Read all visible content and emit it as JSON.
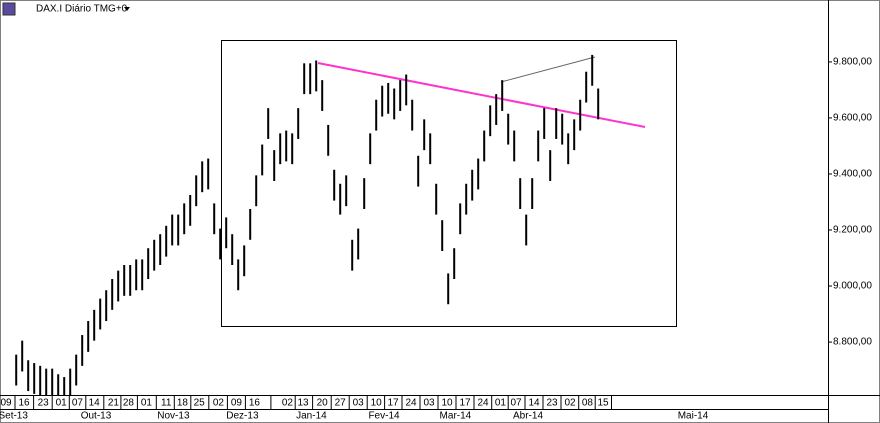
{
  "chart_data": {
    "type": "ohlc",
    "title": "DAX.I Diário TMG+0",
    "color": "#000000",
    "xlim": [
      -2.7,
      135.3
    ],
    "ylim": [
      8611,
      10021
    ],
    "yticks": [
      {
        "value": 8800,
        "label": "8.800,00"
      },
      {
        "value": 9000,
        "label": "9.000,00"
      },
      {
        "value": 9200,
        "label": "9.200,00"
      },
      {
        "value": 9400,
        "label": "9.400,00"
      },
      {
        "value": 9600,
        "label": "9.600,00"
      },
      {
        "value": 9800,
        "label": "9.800,00"
      }
    ],
    "xticks": [
      {
        "value": -1.7,
        "label": "09"
      },
      {
        "value": 1.3,
        "label": "16"
      },
      {
        "value": 4.5,
        "label": "23"
      },
      {
        "value": 7.5,
        "label": "01"
      },
      {
        "value": 10.2,
        "label": "07"
      },
      {
        "value": 13,
        "label": "14"
      },
      {
        "value": 16.2,
        "label": "21"
      },
      {
        "value": 18.7,
        "label": "28"
      },
      {
        "value": 21.7,
        "label": "01"
      },
      {
        "value": 25,
        "label": "11"
      },
      {
        "value": 27.7,
        "label": "18"
      },
      {
        "value": 30.5,
        "label": "25"
      },
      {
        "value": 33.7,
        "label": "02"
      },
      {
        "value": 36.7,
        "label": "09"
      },
      {
        "value": 39.7,
        "label": "16"
      },
      {
        "value": 45.2,
        "label": "02"
      },
      {
        "value": 47.8,
        "label": "13"
      },
      {
        "value": 51,
        "label": "20"
      },
      {
        "value": 54,
        "label": "27"
      },
      {
        "value": 57,
        "label": "03"
      },
      {
        "value": 60,
        "label": "10"
      },
      {
        "value": 62.8,
        "label": "17"
      },
      {
        "value": 65.8,
        "label": "24"
      },
      {
        "value": 68.8,
        "label": "03"
      },
      {
        "value": 71.8,
        "label": "10"
      },
      {
        "value": 74.8,
        "label": "17"
      },
      {
        "value": 77.8,
        "label": "24"
      },
      {
        "value": 80.7,
        "label": "01"
      },
      {
        "value": 83.3,
        "label": "07"
      },
      {
        "value": 86.3,
        "label": "14"
      },
      {
        "value": 89.3,
        "label": "23"
      },
      {
        "value": 92.3,
        "label": "02"
      },
      {
        "value": 95.2,
        "label": "08"
      },
      {
        "value": 97.8,
        "label": "15"
      }
    ],
    "month_ticks": [
      {
        "value": -0.5,
        "label": "Set-13"
      },
      {
        "value": 13.3,
        "label": "Out-13"
      },
      {
        "value": 26.2,
        "label": "Nov-13"
      },
      {
        "value": 37.7,
        "label": "Dez-13"
      },
      {
        "value": 49.2,
        "label": "Jan-14"
      },
      {
        "value": 61.3,
        "label": "Fev-14"
      },
      {
        "value": 73.2,
        "label": "Mar-14"
      },
      {
        "value": 85.3,
        "label": "Abr-14"
      },
      {
        "value": 112.8,
        "label": "Mai-14"
      }
    ],
    "high": [
      8755,
      8805,
      8735,
      8725,
      8715,
      8705,
      8705,
      8685,
      8675,
      8705,
      8755,
      8825,
      8875,
      8915,
      8955,
      8985,
      9025,
      9055,
      9075,
      9075,
      9095,
      9095,
      9135,
      9165,
      9185,
      9215,
      9255,
      9255,
      9295,
      9325,
      9395,
      9445,
      9455,
      9295,
      9205,
      9245,
      9185,
      9095,
      9145,
      9275,
      9395,
      9505,
      9635,
      9485,
      9545,
      9555,
      9545,
      9635,
      9795,
      9795,
      9805,
      9735,
      9575,
      9415,
      9365,
      9395,
      9165,
      9205,
      9385,
      9545,
      9665,
      9715,
      9725,
      9705,
      9735,
      9755,
      9665,
      9465,
      9595,
      9545,
      9365,
      9235,
      9045,
      9135,
      9295,
      9365,
      9415,
      9455,
      9555,
      9645,
      9685,
      9735,
      9615,
      9555,
      9385,
      9255,
      9385,
      9555,
      9635,
      9485,
      9635,
      9615,
      9545,
      9595,
      9665,
      9765,
      9825,
      9705
    ],
    "low": [
      8645,
      8695,
      8625,
      8615,
      8605,
      8595,
      8595,
      8575,
      8565,
      8595,
      8645,
      8715,
      8765,
      8805,
      8845,
      8875,
      8915,
      8945,
      8965,
      8965,
      8985,
      8985,
      9025,
      9055,
      9075,
      9105,
      9145,
      9145,
      9185,
      9215,
      9285,
      9335,
      9345,
      9185,
      9095,
      9135,
      9075,
      8985,
      9035,
      9165,
      9285,
      9395,
      9525,
      9375,
      9435,
      9445,
      9435,
      9525,
      9685,
      9685,
      9695,
      9625,
      9465,
      9305,
      9255,
      9285,
      9055,
      9095,
      9275,
      9435,
      9555,
      9605,
      9615,
      9595,
      9625,
      9645,
      9555,
      9355,
      9485,
      9435,
      9255,
      9125,
      8935,
      9025,
      9185,
      9255,
      9305,
      9345,
      9445,
      9535,
      9575,
      9625,
      9505,
      9445,
      9275,
      9145,
      9275,
      9445,
      9525,
      9375,
      9525,
      9505,
      9435,
      9485,
      9555,
      9655,
      9715,
      9595
    ]
  }
}
